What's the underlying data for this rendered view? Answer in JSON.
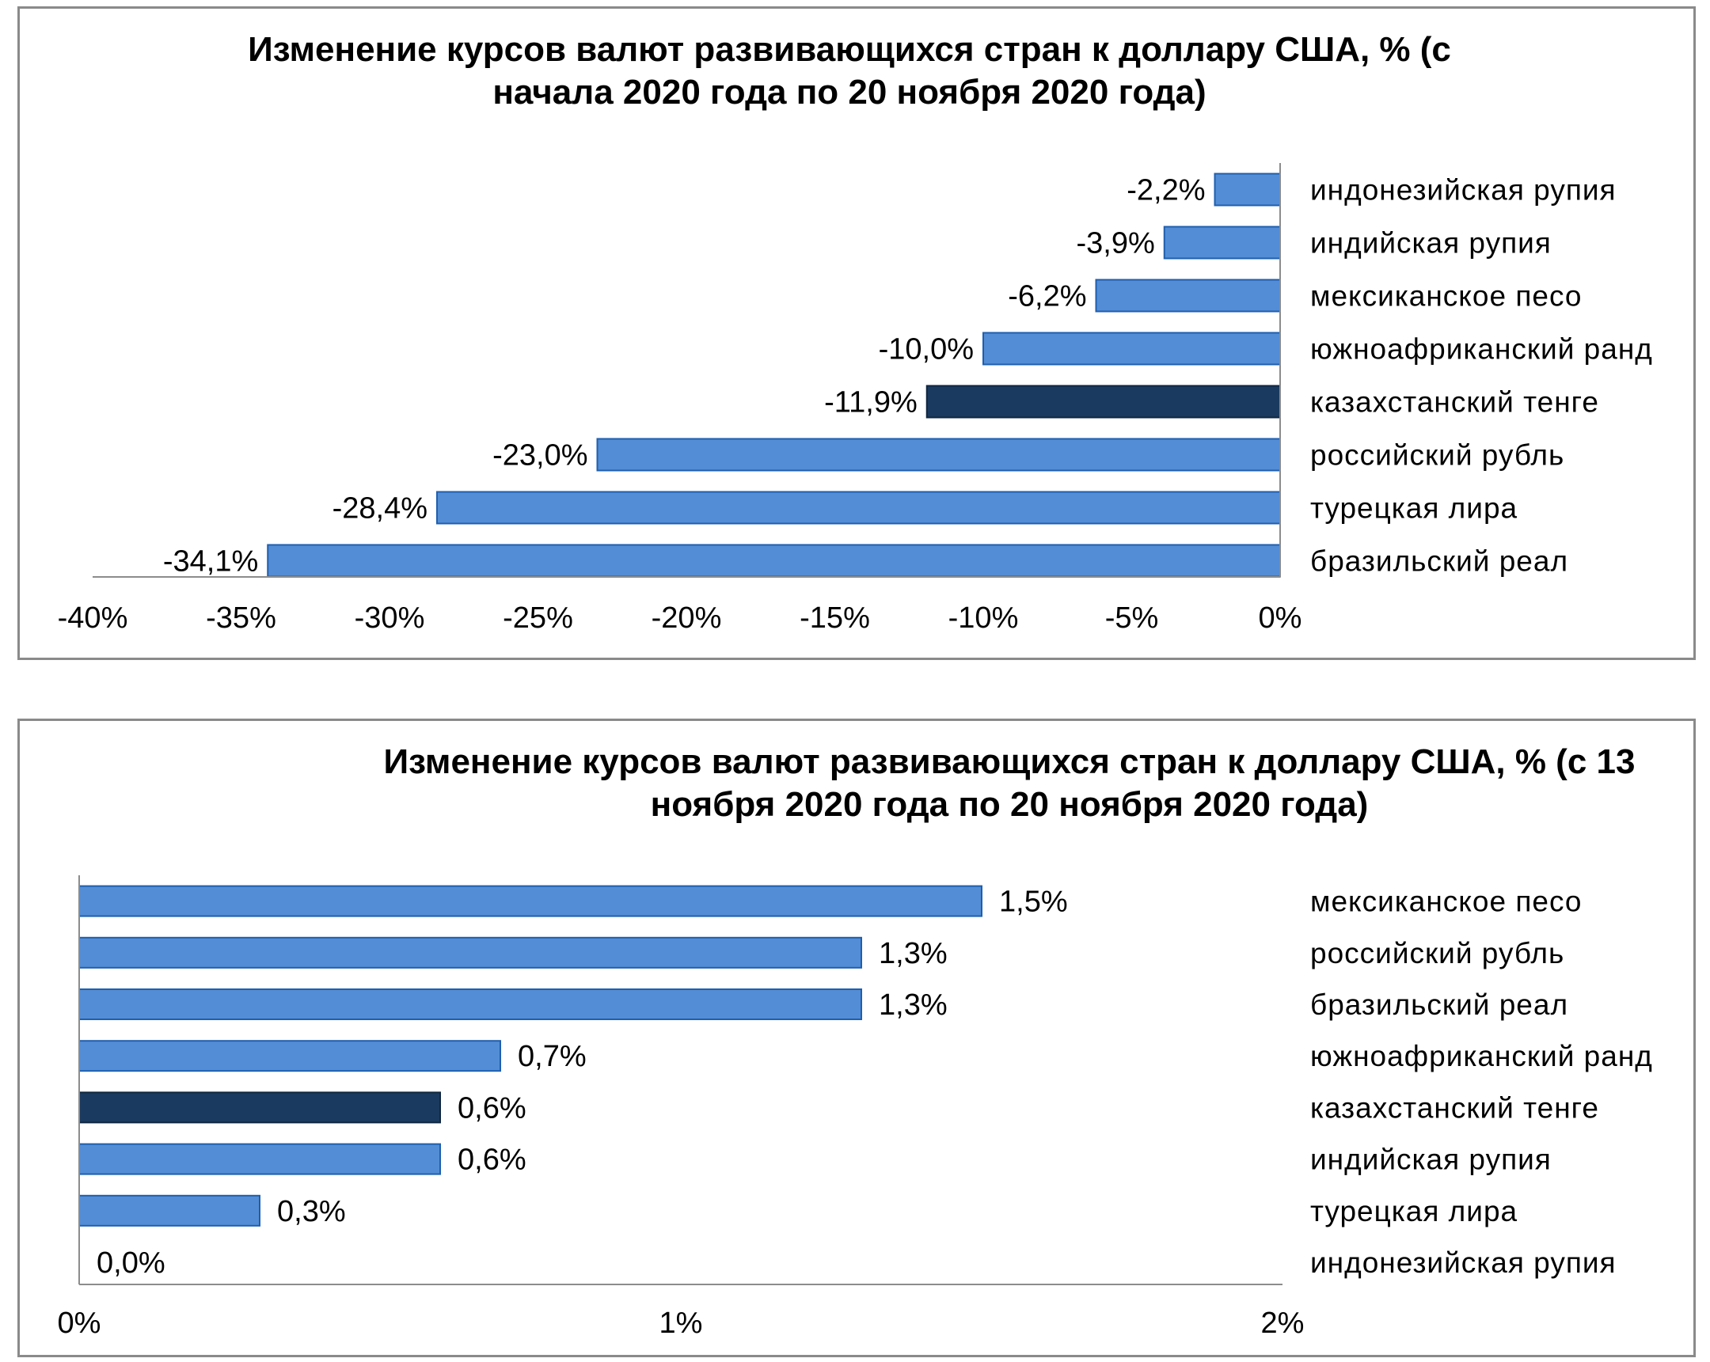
{
  "colors": {
    "bar": "#538DD5",
    "bar_outline": "#1F5FAF",
    "highlight": "#1B3A5F",
    "highlight_outline": "#0F2640"
  },
  "chart_data": [
    {
      "type": "bar",
      "orientation": "horizontal",
      "title_lines": [
        "Изменение курсов валют развивающихся стран к доллару США, % (с",
        "начала 2020 года по 20 ноября 2020 года)"
      ],
      "categories": [
        "индонезийская рупия",
        "индийская рупия",
        "мексиканское песо",
        "южноафриканский ранд",
        "казахстанский тенге",
        "российский рубль",
        "турецкая лира",
        "бразильский реал"
      ],
      "values": [
        -2.2,
        -3.9,
        -6.2,
        -10.0,
        -11.9,
        -23.0,
        -28.4,
        -34.1
      ],
      "data_labels": [
        "-2,2%",
        "-3,9%",
        "-6,2%",
        "-10,0%",
        "-11,9%",
        "-23,0%",
        "-28,4%",
        "-34,1%"
      ],
      "highlight": "казахстанский тенге",
      "xlim": [
        -40,
        0
      ],
      "xticks": [
        -40,
        -35,
        -30,
        -25,
        -20,
        -15,
        -10,
        -5,
        0
      ],
      "xtick_labels": [
        "-40%",
        "-35%",
        "-30%",
        "-25%",
        "-20%",
        "-15%",
        "-10%",
        "-5%",
        "0%"
      ],
      "grid": false,
      "legend": "none"
    },
    {
      "type": "bar",
      "orientation": "horizontal",
      "title_lines": [
        "Изменение курсов валют развивающихся стран к доллару США, % (с 13",
        "ноября 2020 года по 20 ноября 2020 года)"
      ],
      "categories": [
        "мексиканское песо",
        "российский рубль",
        "бразильский реал",
        "южноафриканский ранд",
        "казахстанский тенге",
        "индийская рупия",
        "турецкая лира",
        "индонезийская рупия"
      ],
      "values": [
        1.5,
        1.3,
        1.3,
        0.7,
        0.6,
        0.6,
        0.3,
        0.0
      ],
      "data_labels": [
        "1,5%",
        "1,3%",
        "1,3%",
        "0,7%",
        "0,6%",
        "0,6%",
        "0,3%",
        "0,0%"
      ],
      "highlight": "казахстанский тенге",
      "xlim": [
        0,
        2
      ],
      "xticks": [
        0,
        1,
        2
      ],
      "xtick_labels": [
        "0%",
        "1%",
        "2%"
      ],
      "grid": false,
      "legend": "none"
    }
  ]
}
